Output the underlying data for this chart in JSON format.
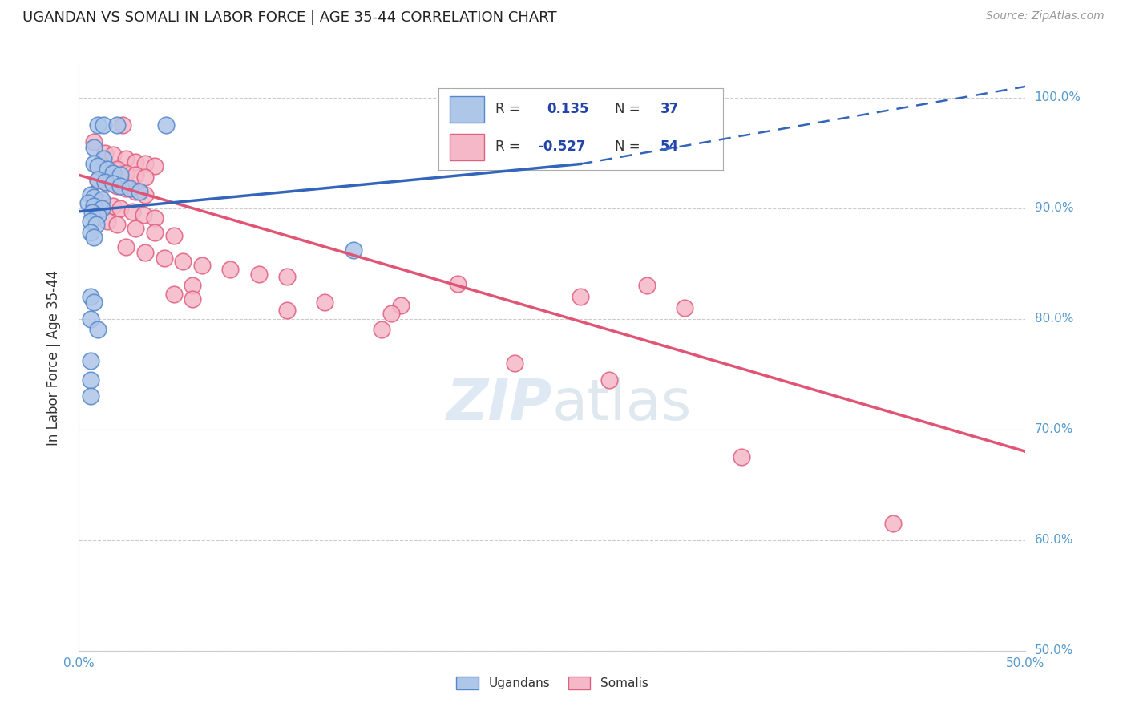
{
  "title": "UGANDAN VS SOMALI IN LABOR FORCE | AGE 35-44 CORRELATION CHART",
  "source": "Source: ZipAtlas.com",
  "ylabel": "In Labor Force | Age 35-44",
  "x_min": 0.0,
  "x_max": 0.5,
  "y_min": 0.5,
  "y_max": 1.03,
  "x_ticks": [
    0.0,
    0.1,
    0.2,
    0.3,
    0.4,
    0.5
  ],
  "x_tick_labels": [
    "0.0%",
    "",
    "",
    "",
    "",
    "50.0%"
  ],
  "y_ticks": [
    0.5,
    0.6,
    0.7,
    0.8,
    0.9,
    1.0
  ],
  "y_tick_labels_right": [
    "50.0%",
    "60.0%",
    "70.0%",
    "80.0%",
    "90.0%",
    "100.0%"
  ],
  "ugandan_color": "#aec6e8",
  "somali_color": "#f5b8c8",
  "ugandan_edge_color": "#5588cc",
  "somali_edge_color": "#e06080",
  "ugandan_R": 0.135,
  "ugandan_N": 37,
  "somali_R": -0.527,
  "somali_N": 54,
  "ugandan_line_color": "#3366bb",
  "somali_line_color": "#e05575",
  "grid_color": "#cccccc",
  "background_color": "#ffffff",
  "title_fontsize": 13,
  "axis_tick_color": "#5599cc",
  "ugandan_scatter": [
    [
      0.01,
      0.975
    ],
    [
      0.013,
      0.975
    ],
    [
      0.02,
      0.975
    ],
    [
      0.046,
      0.975
    ],
    [
      0.008,
      0.955
    ],
    [
      0.013,
      0.945
    ],
    [
      0.008,
      0.94
    ],
    [
      0.01,
      0.938
    ],
    [
      0.015,
      0.935
    ],
    [
      0.018,
      0.932
    ],
    [
      0.022,
      0.93
    ],
    [
      0.01,
      0.926
    ],
    [
      0.014,
      0.924
    ],
    [
      0.018,
      0.922
    ],
    [
      0.022,
      0.92
    ],
    [
      0.027,
      0.918
    ],
    [
      0.032,
      0.915
    ],
    [
      0.006,
      0.912
    ],
    [
      0.008,
      0.91
    ],
    [
      0.012,
      0.908
    ],
    [
      0.005,
      0.905
    ],
    [
      0.008,
      0.902
    ],
    [
      0.012,
      0.9
    ],
    [
      0.007,
      0.896
    ],
    [
      0.01,
      0.893
    ],
    [
      0.006,
      0.888
    ],
    [
      0.009,
      0.885
    ],
    [
      0.006,
      0.878
    ],
    [
      0.008,
      0.874
    ],
    [
      0.006,
      0.82
    ],
    [
      0.008,
      0.815
    ],
    [
      0.006,
      0.8
    ],
    [
      0.01,
      0.79
    ],
    [
      0.006,
      0.762
    ],
    [
      0.145,
      0.862
    ],
    [
      0.006,
      0.745
    ],
    [
      0.006,
      0.73
    ]
  ],
  "somali_scatter": [
    [
      0.023,
      0.975
    ],
    [
      0.008,
      0.96
    ],
    [
      0.014,
      0.95
    ],
    [
      0.018,
      0.948
    ],
    [
      0.025,
      0.945
    ],
    [
      0.03,
      0.942
    ],
    [
      0.035,
      0.94
    ],
    [
      0.04,
      0.938
    ],
    [
      0.02,
      0.935
    ],
    [
      0.025,
      0.932
    ],
    [
      0.03,
      0.93
    ],
    [
      0.035,
      0.928
    ],
    [
      0.01,
      0.925
    ],
    [
      0.015,
      0.922
    ],
    [
      0.02,
      0.92
    ],
    [
      0.025,
      0.918
    ],
    [
      0.03,
      0.915
    ],
    [
      0.035,
      0.912
    ],
    [
      0.008,
      0.908
    ],
    [
      0.012,
      0.905
    ],
    [
      0.018,
      0.902
    ],
    [
      0.022,
      0.9
    ],
    [
      0.028,
      0.897
    ],
    [
      0.034,
      0.894
    ],
    [
      0.04,
      0.891
    ],
    [
      0.015,
      0.888
    ],
    [
      0.02,
      0.885
    ],
    [
      0.03,
      0.882
    ],
    [
      0.04,
      0.878
    ],
    [
      0.05,
      0.875
    ],
    [
      0.025,
      0.865
    ],
    [
      0.035,
      0.86
    ],
    [
      0.045,
      0.855
    ],
    [
      0.055,
      0.852
    ],
    [
      0.065,
      0.848
    ],
    [
      0.08,
      0.845
    ],
    [
      0.095,
      0.84
    ],
    [
      0.11,
      0.838
    ],
    [
      0.06,
      0.83
    ],
    [
      0.05,
      0.822
    ],
    [
      0.06,
      0.818
    ],
    [
      0.13,
      0.815
    ],
    [
      0.17,
      0.812
    ],
    [
      0.11,
      0.808
    ],
    [
      0.165,
      0.805
    ],
    [
      0.2,
      0.832
    ],
    [
      0.265,
      0.82
    ],
    [
      0.16,
      0.79
    ],
    [
      0.23,
      0.76
    ],
    [
      0.28,
      0.745
    ],
    [
      0.3,
      0.83
    ],
    [
      0.32,
      0.81
    ],
    [
      0.35,
      0.675
    ],
    [
      0.43,
      0.615
    ]
  ],
  "blue_line_solid": {
    "x": [
      0.0,
      0.265
    ],
    "y": [
      0.897,
      0.94
    ]
  },
  "blue_line_dashed": {
    "x": [
      0.265,
      0.5
    ],
    "y": [
      0.94,
      1.01
    ]
  },
  "pink_line": {
    "x": [
      0.0,
      0.5
    ],
    "y": [
      0.93,
      0.68
    ]
  },
  "watermark_text": "ZIPatlas",
  "watermark_zip_color": "#c8d8e8",
  "watermark_atlas_color": "#b8c8d8"
}
